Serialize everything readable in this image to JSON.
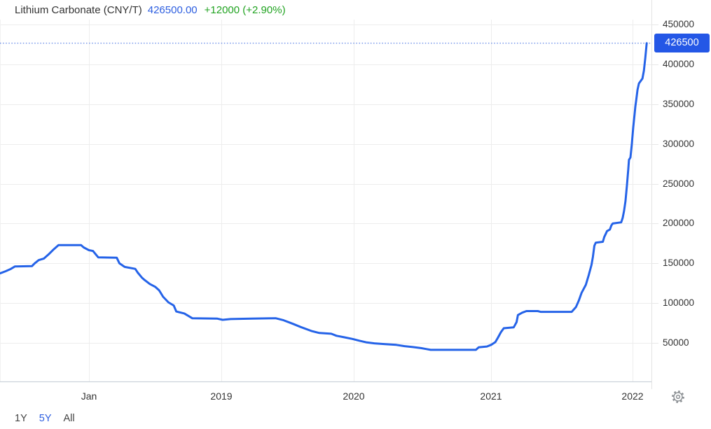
{
  "header": {
    "title": "Lithium Carbonate (CNY/T)",
    "price": "426500.00",
    "change": "+12000 (+2.90%)"
  },
  "price_tag": {
    "label": "426500",
    "bg_color": "#2457e6",
    "text_color": "#ffffff"
  },
  "range_selector": {
    "options": [
      {
        "label": "1Y",
        "selected": false
      },
      {
        "label": "5Y",
        "selected": true
      },
      {
        "label": "All",
        "selected": false
      }
    ]
  },
  "settings": {
    "icon": "gear-icon"
  },
  "colors": {
    "line": "#2563e8",
    "dotted_reference": "#3565e0",
    "grid": "#ededed",
    "axis_line": "#ccd3dc",
    "price_text_blue": "#2d5ee0",
    "change_green": "#21a321",
    "label_text": "#333333"
  },
  "chart_data": {
    "type": "line",
    "title": "Lithium Carbonate (CNY/T)",
    "xlabel": "",
    "ylabel": "CNY/T",
    "grid": true,
    "legend": "none",
    "current_value": 426500,
    "last_change": 12000,
    "last_change_pct": 2.9,
    "ylim": [
      0,
      460000
    ],
    "xlim_years": [
      2017.32,
      2022.12
    ],
    "y_ticks": [
      450000,
      400000,
      350000,
      300000,
      250000,
      200000,
      150000,
      100000,
      50000
    ],
    "x_ticks": [
      {
        "label": "Jan",
        "year": 2018
      },
      {
        "label": "2019",
        "year": 2019
      },
      {
        "label": "2020",
        "year": 2020
      },
      {
        "label": "2021",
        "year": 2021
      },
      {
        "label": "2022",
        "year": 2022
      }
    ],
    "series": [
      {
        "name": "Lithium Carbonate price",
        "points": [
          [
            2017.33,
            137500
          ],
          [
            2017.37,
            140000
          ],
          [
            2017.41,
            143000
          ],
          [
            2017.44,
            146000
          ],
          [
            2017.57,
            146500
          ],
          [
            2017.59,
            150000
          ],
          [
            2017.62,
            154000
          ],
          [
            2017.66,
            156000
          ],
          [
            2017.7,
            162000
          ],
          [
            2017.73,
            167000
          ],
          [
            2017.77,
            172800
          ],
          [
            2017.94,
            172800
          ],
          [
            2017.96,
            170000
          ],
          [
            2018.0,
            166500
          ],
          [
            2018.03,
            165500
          ],
          [
            2018.07,
            157500
          ],
          [
            2018.21,
            157000
          ],
          [
            2018.23,
            150000
          ],
          [
            2018.27,
            145500
          ],
          [
            2018.35,
            143000
          ],
          [
            2018.37,
            138000
          ],
          [
            2018.4,
            132000
          ],
          [
            2018.42,
            129000
          ],
          [
            2018.46,
            124000
          ],
          [
            2018.5,
            120500
          ],
          [
            2018.53,
            116000
          ],
          [
            2018.56,
            108000
          ],
          [
            2018.6,
            101000
          ],
          [
            2018.64,
            97000
          ],
          [
            2018.66,
            89500
          ],
          [
            2018.72,
            87000
          ],
          [
            2018.75,
            84000
          ],
          [
            2018.78,
            81000
          ],
          [
            2018.97,
            80500
          ],
          [
            2019.01,
            79000
          ],
          [
            2019.07,
            80000
          ],
          [
            2019.23,
            80500
          ],
          [
            2019.41,
            81000
          ],
          [
            2019.47,
            78500
          ],
          [
            2019.54,
            74000
          ],
          [
            2019.6,
            70000
          ],
          [
            2019.68,
            65000
          ],
          [
            2019.74,
            62500
          ],
          [
            2019.83,
            61500
          ],
          [
            2019.87,
            59000
          ],
          [
            2019.93,
            57000
          ],
          [
            2019.99,
            55000
          ],
          [
            2020.04,
            52800
          ],
          [
            2020.09,
            50800
          ],
          [
            2020.15,
            49500
          ],
          [
            2020.23,
            48500
          ],
          [
            2020.31,
            47500
          ],
          [
            2020.37,
            46000
          ],
          [
            2020.43,
            44800
          ],
          [
            2020.49,
            43500
          ],
          [
            2020.53,
            42300
          ],
          [
            2020.56,
            41300
          ],
          [
            2020.89,
            41300
          ],
          [
            2020.91,
            44500
          ],
          [
            2020.97,
            45500
          ],
          [
            2021.0,
            47500
          ],
          [
            2021.03,
            51000
          ],
          [
            2021.05,
            57000
          ],
          [
            2021.07,
            63500
          ],
          [
            2021.09,
            68500
          ],
          [
            2021.16,
            69500
          ],
          [
            2021.18,
            76000
          ],
          [
            2021.19,
            85000
          ],
          [
            2021.22,
            88000
          ],
          [
            2021.25,
            90000
          ],
          [
            2021.33,
            90000
          ],
          [
            2021.35,
            89000
          ],
          [
            2021.57,
            89000
          ],
          [
            2021.6,
            95000
          ],
          [
            2021.62,
            103000
          ],
          [
            2021.64,
            113000
          ],
          [
            2021.67,
            123000
          ],
          [
            2021.69,
            135000
          ],
          [
            2021.71,
            148000
          ],
          [
            2021.72,
            158000
          ],
          [
            2021.73,
            172000
          ],
          [
            2021.74,
            176000
          ],
          [
            2021.79,
            177000
          ],
          [
            2021.8,
            183000
          ],
          [
            2021.82,
            190500
          ],
          [
            2021.84,
            192500
          ],
          [
            2021.85,
            197500
          ],
          [
            2021.86,
            200000
          ],
          [
            2021.92,
            201500
          ],
          [
            2021.93,
            207000
          ],
          [
            2021.94,
            216000
          ],
          [
            2021.95,
            228000
          ],
          [
            2021.96,
            247000
          ],
          [
            2021.97,
            268000
          ],
          [
            2021.975,
            280000
          ],
          [
            2021.985,
            283000
          ],
          [
            2021.995,
            300000
          ],
          [
            2022.005,
            321000
          ],
          [
            2022.015,
            338000
          ],
          [
            2022.02,
            347000
          ],
          [
            2022.025,
            354000
          ],
          [
            2022.035,
            368000
          ],
          [
            2022.045,
            376000
          ],
          [
            2022.07,
            382000
          ],
          [
            2022.08,
            392000
          ],
          [
            2022.09,
            408000
          ],
          [
            2022.1,
            426500
          ]
        ]
      }
    ]
  }
}
